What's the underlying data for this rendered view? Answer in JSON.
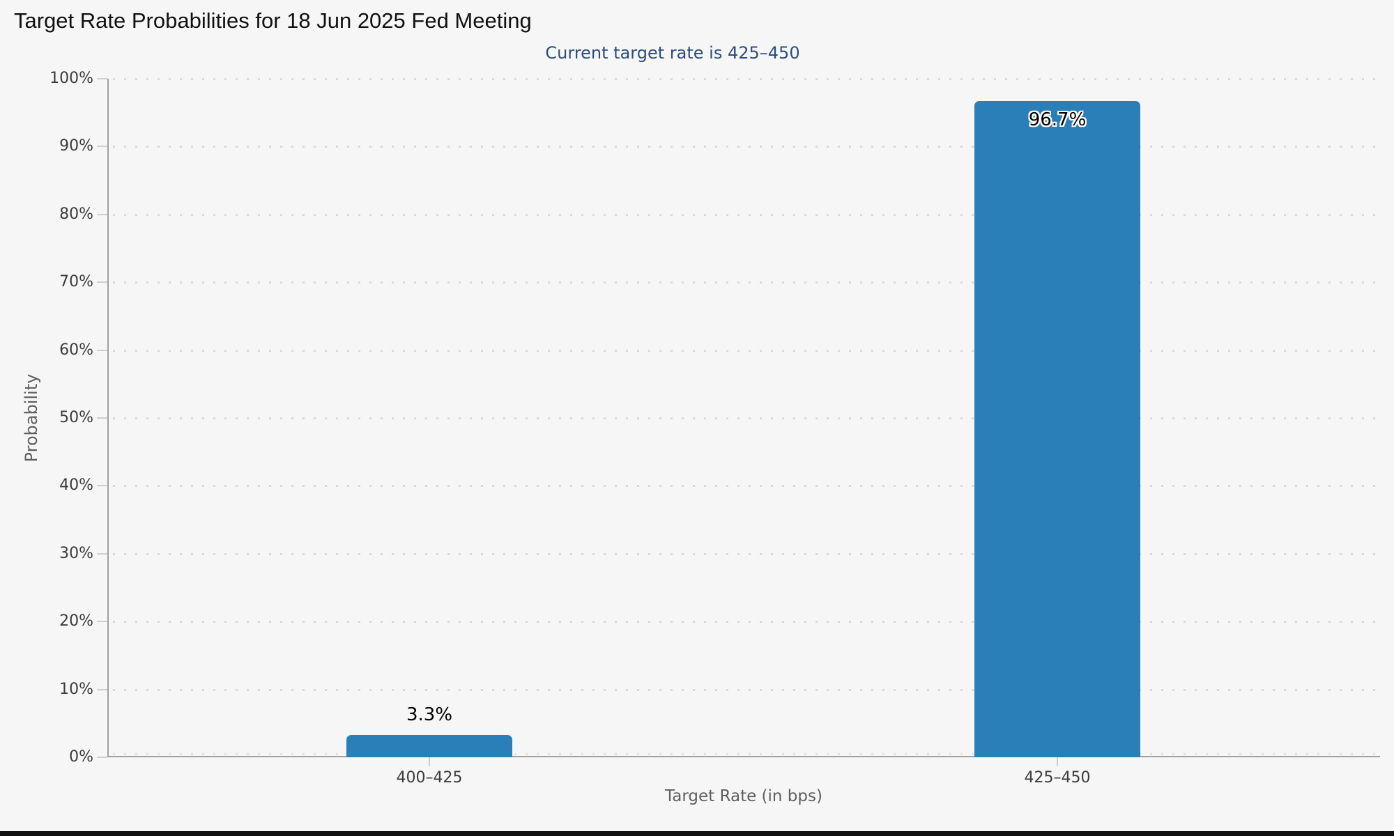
{
  "page": {
    "background_color": "#f6f6f6",
    "footer_bar_color": "#111111"
  },
  "header": {
    "title": "Target Rate Probabilities for 18 Jun 2025 Fed Meeting",
    "subtitle": "Current target rate is 425–450"
  },
  "chart_data": {
    "type": "bar",
    "title": "Target Rate Probabilities for 18 Jun 2025 Fed Meeting",
    "subtitle": "Current target rate is 425–450",
    "categories": [
      "400–425",
      "425–450"
    ],
    "values": [
      3.3,
      96.7
    ],
    "value_labels": [
      "3.3%",
      "96.7%"
    ],
    "xlabel": "Target Rate (in bps)",
    "ylabel": "Probability",
    "ylim": [
      0,
      100
    ],
    "ytick_step": 10,
    "ytick_labels": [
      "0%",
      "10%",
      "20%",
      "30%",
      "40%",
      "50%",
      "60%",
      "70%",
      "80%",
      "90%",
      "100%"
    ],
    "grid": "horizontal-dotted",
    "legend_position": "none",
    "bar_color": "#2b7fb8",
    "axis_color": "#9f9f9f",
    "tick_color": "#cfcfcf",
    "grid_dot_color": "#dadada",
    "tick_label_color": "#3c3c3c",
    "axis_title_color": "#5f5f5f",
    "subtitle_color": "#2e4d7e"
  }
}
